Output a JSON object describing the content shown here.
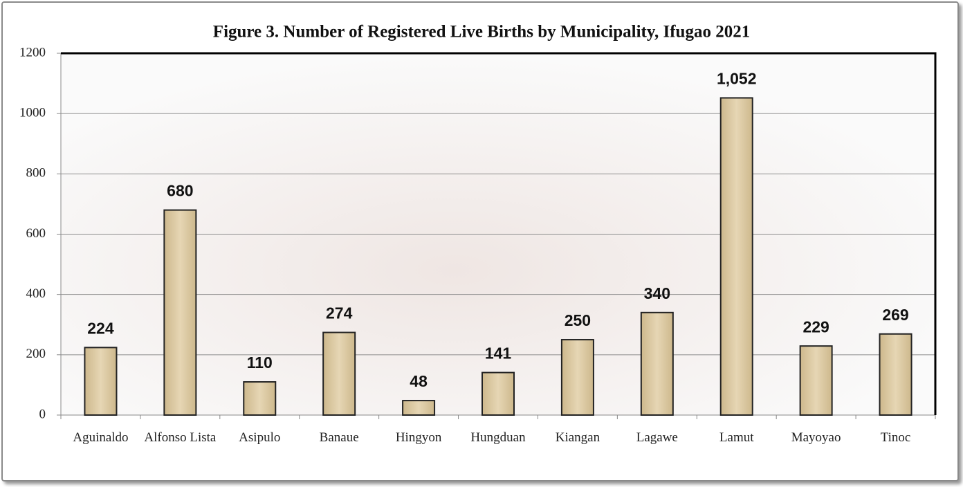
{
  "chart_data": {
    "type": "bar",
    "title": "Figure 3. Number of Registered Live Births by Municipality, Ifugao 2021",
    "categories": [
      "Aguinaldo",
      "Alfonso Lista",
      "Asipulo",
      "Banaue",
      "Hingyon",
      "Hungduan",
      "Kiangan",
      "Lagawe",
      "Lamut",
      "Mayoyao",
      "Tinoc"
    ],
    "values": [
      224,
      680,
      110,
      274,
      48,
      141,
      250,
      340,
      1052,
      229,
      269
    ],
    "value_labels": [
      "224",
      "680",
      "110",
      "274",
      "48",
      "141",
      "250",
      "340",
      "1,052",
      "229",
      "269"
    ],
    "color": "#d9c69f",
    "ylim": [
      0,
      1200
    ],
    "yticks": [
      0,
      200,
      400,
      600,
      800,
      1000,
      1200
    ],
    "grid": true
  }
}
